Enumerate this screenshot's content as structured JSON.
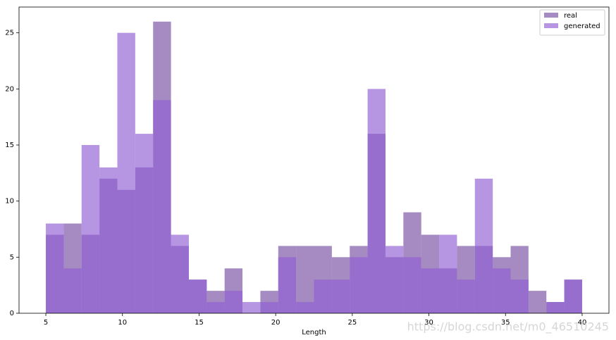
{
  "chart_data": {
    "type": "histogram",
    "xlabel": "Length",
    "bins": [
      5,
      6.1667,
      7.3333,
      8.5,
      9.6667,
      10.8333,
      12,
      13.1667,
      14.3333,
      15.5,
      16.6667,
      17.8333,
      19,
      20.1667,
      21.3333,
      22.5,
      23.6667,
      24.8333,
      26,
      27.1667,
      28.3333,
      29.5,
      30.6667,
      31.8333,
      33,
      34.1667,
      35.3333,
      36.5,
      37.6667,
      38.8333,
      40
    ],
    "series": [
      {
        "name": "real",
        "color": "#6a3d9a",
        "values": [
          7,
          8,
          7,
          12,
          11,
          13,
          26,
          6,
          3,
          2,
          4,
          0,
          2,
          6,
          6,
          6,
          5,
          6,
          16,
          5,
          9,
          7,
          4,
          6,
          6,
          5,
          6,
          2,
          1,
          3
        ]
      },
      {
        "name": "generated",
        "color": "#8f5ed3",
        "values": [
          8,
          4,
          15,
          13,
          25,
          16,
          19,
          7,
          3,
          1,
          2,
          1,
          1,
          5,
          1,
          3,
          3,
          5,
          20,
          6,
          5,
          4,
          7,
          3,
          12,
          4,
          3,
          0,
          1,
          3
        ]
      }
    ],
    "xlim": [
      3.25,
      41.75
    ],
    "ylim": [
      0,
      27.3
    ],
    "xticks": [
      5,
      10,
      15,
      20,
      25,
      30,
      35,
      40
    ],
    "yticks": [
      0,
      5,
      10,
      15,
      20,
      25
    ],
    "legend": "upper right",
    "watermark": "https://blog.csdn.net/m0_46510245"
  }
}
